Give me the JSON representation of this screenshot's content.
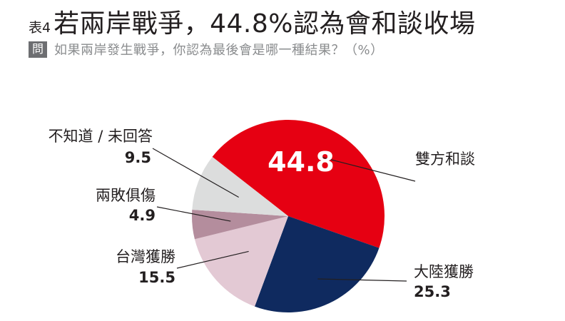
{
  "header": {
    "table_no": "表4",
    "title": "若兩岸戰爭，44.8%認為會和談收場",
    "q_badge": "問",
    "question": "如果兩岸發生戰爭，你認為最後會是哪一種結果？（%）"
  },
  "chart_data": {
    "type": "pie",
    "unit": "%",
    "slices": [
      {
        "label": "雙方和談",
        "value": 44.8,
        "color": "#e60012"
      },
      {
        "label": "大陸獲勝",
        "value": 25.3,
        "color": "#0f2a5f"
      },
      {
        "label": "台灣獲勝",
        "value": 15.5,
        "color": "#e3c9d4"
      },
      {
        "label": "兩敗俱傷",
        "value": 4.9,
        "color": "#b48d9d"
      },
      {
        "label": "不知道 / 未回答",
        "value": 9.5,
        "color": "#dcdddd"
      }
    ]
  }
}
